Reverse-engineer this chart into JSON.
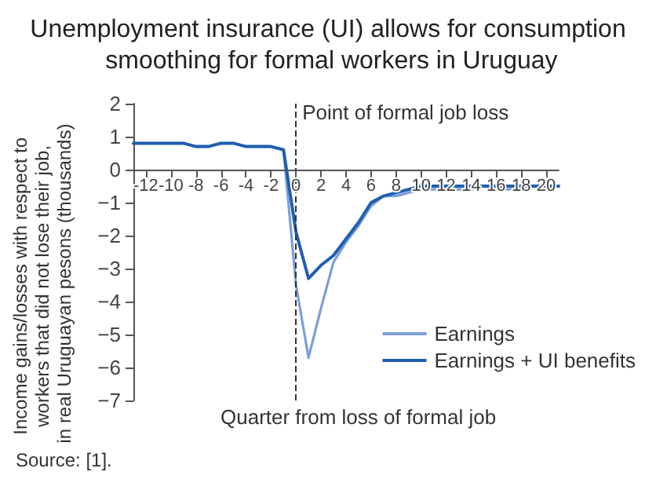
{
  "chart_data": {
    "type": "line",
    "title": "Unemployment insurance (UI) allows for consumption smoothing for formal workers in Uruguay",
    "xlabel": "Quarter from loss of formal job",
    "ylabel": "Income gains/losses with respect to workers that did not lose their job, in real Uruguayan pesons (thousands)",
    "x": [
      -13,
      -12,
      -11,
      -10,
      -9,
      -8,
      -7,
      -6,
      -5,
      -4,
      -3,
      -2,
      -1,
      0,
      1,
      2,
      3,
      4,
      5,
      6,
      7,
      8,
      9,
      10,
      11,
      12,
      13,
      14,
      15,
      16,
      17,
      18,
      19,
      20,
      21
    ],
    "series": [
      {
        "name": "Earnings",
        "color": "#7b9ed9",
        "values": [
          0.8,
          0.8,
          0.8,
          0.8,
          0.8,
          0.7,
          0.7,
          0.8,
          0.8,
          0.7,
          0.7,
          0.7,
          0.6,
          -3.5,
          -5.7,
          -4.2,
          -2.8,
          -2.2,
          -1.7,
          -1.1,
          -0.8,
          -0.8,
          -0.7,
          -0.6,
          -0.6,
          -0.6,
          -0.6,
          -0.6,
          -0.5,
          -0.6,
          -0.6,
          -0.5,
          -0.5,
          -0.5,
          -0.5
        ]
      },
      {
        "name": "Earnings + UI benefits",
        "color": "#1f5fae",
        "values": [
          0.8,
          0.8,
          0.8,
          0.8,
          0.8,
          0.7,
          0.7,
          0.8,
          0.8,
          0.7,
          0.7,
          0.7,
          0.6,
          -1.9,
          -3.3,
          -2.9,
          -2.6,
          -2.1,
          -1.6,
          -1.0,
          -0.8,
          -0.7,
          -0.6,
          -0.5,
          -0.5,
          -0.5,
          -0.5,
          -0.5,
          -0.5,
          -0.5,
          -0.5,
          -0.5,
          -0.5,
          -0.5,
          -0.5
        ]
      }
    ],
    "xlim": [
      -13,
      21
    ],
    "xticks": [
      -12,
      -10,
      -8,
      -6,
      -4,
      -2,
      0,
      2,
      4,
      6,
      8,
      10,
      12,
      14,
      16,
      18,
      20
    ],
    "ylim": [
      -7,
      2
    ],
    "yticks": [
      -7,
      -6,
      -5,
      -4,
      -3,
      -2,
      -1,
      0,
      1,
      2
    ],
    "ref_lines": [
      {
        "axis": "x",
        "value": 0,
        "label": "Point of formal job loss",
        "line_style": "dashed",
        "color": "#333333"
      }
    ],
    "annotations": [
      "Source: [1]."
    ],
    "legend": "bottom right",
    "grid": false,
    "marker": "none",
    "line_style": "solid"
  }
}
